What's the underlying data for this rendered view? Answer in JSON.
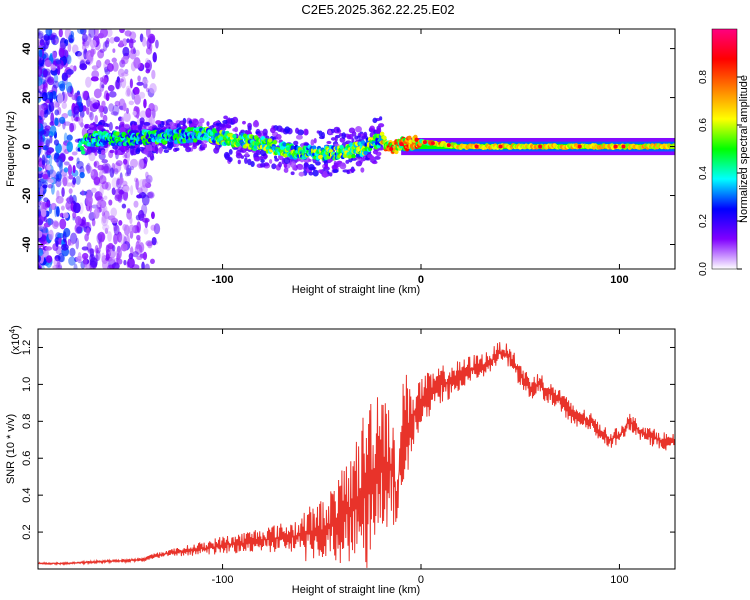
{
  "title": "C2E5.2025.362.22.25.E02",
  "chart_data": [
    {
      "type": "heatmap",
      "xlabel": "Height of straight line (km)",
      "ylabel": "Frequency (Hz)",
      "xlim": [
        -193,
        128
      ],
      "ylim": [
        -50,
        48
      ],
      "xticks": [
        "-100",
        "0",
        "100"
      ],
      "xtick_values": [
        -100,
        0,
        100
      ],
      "yticks": [
        "40",
        "20",
        "0",
        "-20",
        "-40"
      ],
      "ytick_values": [
        40,
        20,
        0,
        -20,
        -40
      ],
      "colorbar": {
        "label": "Normalized spectral amplitude",
        "ticks": [
          "0.0",
          "0.2",
          "0.4",
          "0.6",
          "0.8"
        ],
        "tick_values": [
          0.0,
          0.2,
          0.4,
          0.6,
          0.8
        ],
        "range": [
          0,
          1
        ],
        "colors": [
          "#ffffff",
          "#8000ff",
          "#0000ff",
          "#00ffff",
          "#00ff00",
          "#ffff00",
          "#ff8000",
          "#ff0000",
          "#ff0080"
        ]
      },
      "ridge": [
        {
          "x": -170,
          "f": 3.0
        },
        {
          "x": -150,
          "f": 3.5
        },
        {
          "x": -130,
          "f": 4.0
        },
        {
          "x": -110,
          "f": 5.0
        },
        {
          "x": -95,
          "f": 3.0
        },
        {
          "x": -80,
          "f": 1.0
        },
        {
          "x": -65,
          "f": -2.0
        },
        {
          "x": -50,
          "f": -3.0
        },
        {
          "x": -40,
          "f": -2.0
        },
        {
          "x": -30,
          "f": -1.0
        },
        {
          "x": -20,
          "f": 3.0
        },
        {
          "x": -15,
          "f": -1.0
        },
        {
          "x": -10,
          "f": 1.0
        },
        {
          "x": 0,
          "f": 2.0
        },
        {
          "x": 10,
          "f": 1.0
        },
        {
          "x": 20,
          "f": 0.0
        },
        {
          "x": 60,
          "f": 0.0
        },
        {
          "x": 100,
          "f": 0.0
        },
        {
          "x": 128,
          "f": 0.0
        }
      ]
    },
    {
      "type": "line",
      "xlabel": "Height of straight line (km)",
      "ylabel": "SNR (10 * v/v)",
      "y_scale_note": "(x10",
      "y_scale_exp": "4",
      "xlim": [
        -193,
        128
      ],
      "ylim": [
        0,
        1.3
      ],
      "xticks": [
        "-100",
        "0",
        "100"
      ],
      "xtick_values": [
        -100,
        0,
        100
      ],
      "yticks": [
        "0.2",
        "0.4",
        "0.6",
        "0.8",
        "1.0",
        "1.2"
      ],
      "ytick_values": [
        0.2,
        0.4,
        0.6,
        0.8,
        1.0,
        1.2
      ],
      "color": "#e8332a",
      "series": [
        {
          "x": [
            -193,
            -180,
            -160,
            -140,
            -135,
            -125,
            -110,
            -100,
            -90,
            -80,
            -70,
            -60,
            -50,
            -45,
            -40,
            -35,
            -30,
            -25,
            -20,
            -15,
            -12,
            -10,
            -5,
            0,
            5,
            10,
            15,
            20,
            25,
            30,
            35,
            40,
            45,
            50,
            55,
            60,
            65,
            70,
            75,
            80,
            85,
            90,
            95,
            100,
            105,
            110,
            115,
            120,
            128
          ],
          "y": [
            0.03,
            0.03,
            0.04,
            0.05,
            0.07,
            0.09,
            0.11,
            0.13,
            0.14,
            0.16,
            0.17,
            0.18,
            0.21,
            0.25,
            0.28,
            0.33,
            0.4,
            0.5,
            0.6,
            0.55,
            0.38,
            0.7,
            0.8,
            0.9,
            0.95,
            1.0,
            1.02,
            1.05,
            1.08,
            1.1,
            1.12,
            1.18,
            1.15,
            1.05,
            0.98,
            1.0,
            0.95,
            0.92,
            0.85,
            0.82,
            0.8,
            0.75,
            0.7,
            0.72,
            0.8,
            0.75,
            0.72,
            0.7,
            0.68
          ],
          "noise": [
            0.005,
            0.005,
            0.008,
            0.01,
            0.015,
            0.02,
            0.04,
            0.05,
            0.06,
            0.07,
            0.08,
            0.1,
            0.12,
            0.14,
            0.18,
            0.22,
            0.3,
            0.35,
            0.35,
            0.25,
            0.1,
            0.25,
            0.2,
            0.15,
            0.12,
            0.1,
            0.1,
            0.08,
            0.08,
            0.07,
            0.07,
            0.06,
            0.06,
            0.07,
            0.07,
            0.07,
            0.06,
            0.06,
            0.06,
            0.06,
            0.05,
            0.05,
            0.05,
            0.05,
            0.05,
            0.05,
            0.05,
            0.05,
            0.05
          ]
        }
      ]
    }
  ]
}
